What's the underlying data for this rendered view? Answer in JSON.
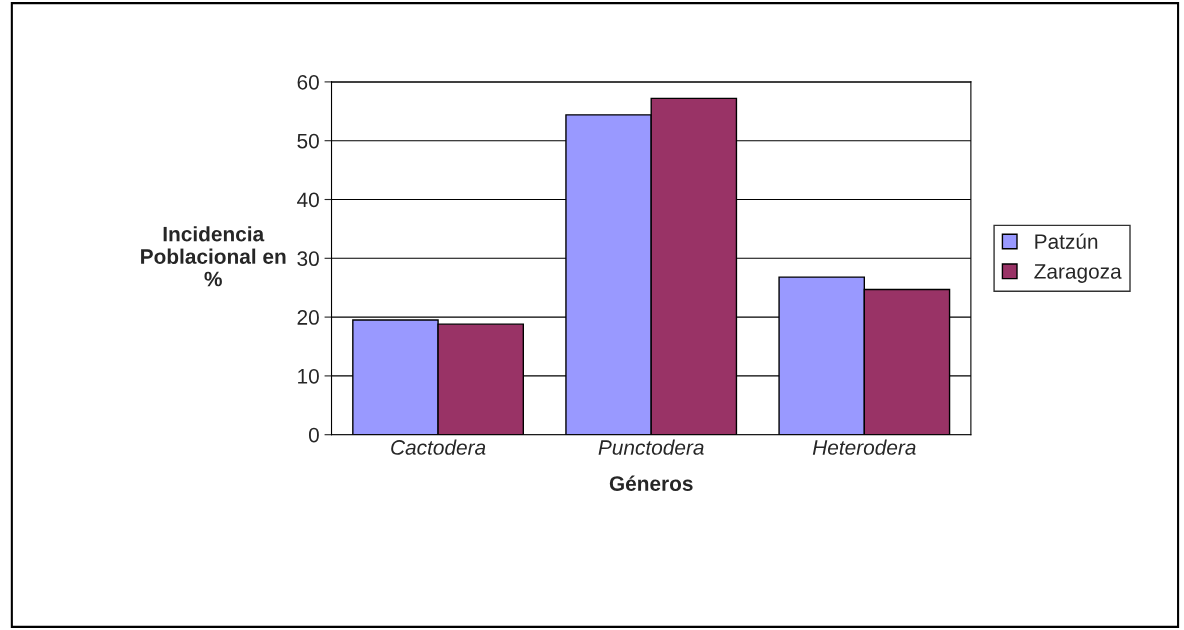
{
  "chart_data": {
    "type": "bar",
    "xlabel": "Géneros",
    "ylabel": "Incidencia\nPoblacional en\n%",
    "categories": [
      "Cactodera",
      "Punctodera",
      "Heterodera"
    ],
    "series": [
      {
        "name": "Patzún",
        "color": "#9999ff",
        "values": [
          19.5,
          54.4,
          26.8
        ]
      },
      {
        "name": "Zaragoza",
        "color": "#993366",
        "values": [
          18.8,
          57.2,
          24.7
        ]
      }
    ],
    "ylim": [
      0,
      60
    ],
    "yticks": [
      0,
      10,
      20,
      30,
      40,
      50,
      60
    ],
    "grid": "y",
    "legend": "right"
  }
}
